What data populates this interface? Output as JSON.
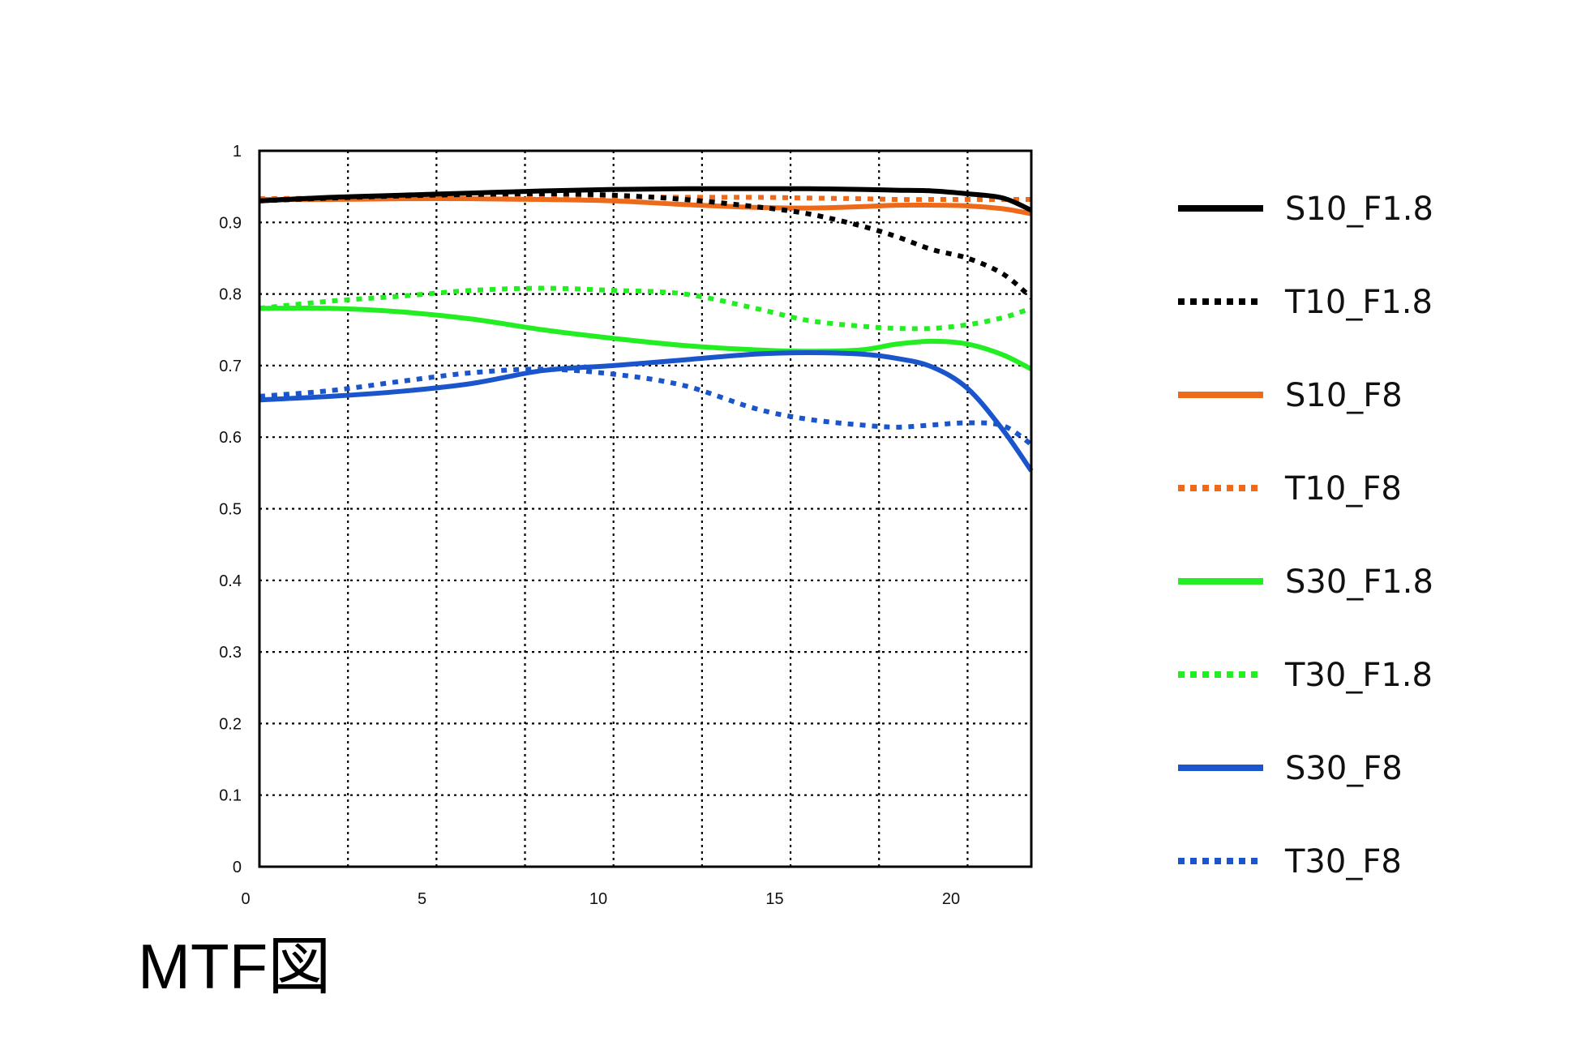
{
  "chart_data": {
    "type": "line",
    "title": "MTF図",
    "xlabel": "",
    "ylabel": "",
    "xlim": [
      0,
      21.8
    ],
    "ylim": [
      0,
      1
    ],
    "x_ticks": [
      0,
      5,
      10,
      15,
      20
    ],
    "y_ticks": [
      0,
      0.1,
      0.2,
      0.3,
      0.4,
      0.5,
      0.6,
      0.7,
      0.8,
      0.9,
      1
    ],
    "y_tick_labels": [
      "0",
      "0.1",
      "0.2",
      "0.3",
      "0.4",
      "0.5",
      "0.6",
      "0.7",
      "0.8",
      "0.9",
      "1"
    ],
    "x_tick_labels": [
      "0",
      "5",
      "10",
      "15",
      "20"
    ],
    "grid": true,
    "legend_position": "right",
    "x": [
      0,
      2,
      4,
      6,
      8,
      10,
      12,
      14,
      15.5,
      17,
      18,
      19,
      20,
      21,
      21.8
    ],
    "series": [
      {
        "name": "S10_F1.8",
        "color": "#000000",
        "style": "solid",
        "values": [
          0.93,
          0.935,
          0.938,
          0.941,
          0.944,
          0.946,
          0.947,
          0.947,
          0.947,
          0.946,
          0.945,
          0.944,
          0.94,
          0.934,
          0.917
        ]
      },
      {
        "name": "T10_F1.8",
        "color": "#000000",
        "style": "dotted",
        "values": [
          0.93,
          0.934,
          0.937,
          0.939,
          0.94,
          0.938,
          0.932,
          0.922,
          0.912,
          0.895,
          0.88,
          0.862,
          0.85,
          0.828,
          0.795
        ]
      },
      {
        "name": "S10_F8",
        "color": "#ee6a1b",
        "style": "solid",
        "values": [
          0.932,
          0.932,
          0.933,
          0.933,
          0.932,
          0.93,
          0.925,
          0.921,
          0.92,
          0.922,
          0.924,
          0.924,
          0.923,
          0.919,
          0.912
        ]
      },
      {
        "name": "T10_F8",
        "color": "#ee6a1b",
        "style": "dotted",
        "values": [
          0.933,
          0.934,
          0.935,
          0.936,
          0.936,
          0.936,
          0.935,
          0.935,
          0.934,
          0.933,
          0.932,
          0.932,
          0.932,
          0.932,
          0.932
        ]
      },
      {
        "name": "S30_F1.8",
        "color": "#22ee22",
        "style": "solid",
        "values": [
          0.78,
          0.78,
          0.775,
          0.765,
          0.75,
          0.738,
          0.728,
          0.722,
          0.72,
          0.722,
          0.73,
          0.734,
          0.73,
          0.715,
          0.695
        ]
      },
      {
        "name": "T30_F1.8",
        "color": "#22ee22",
        "style": "dotted",
        "values": [
          0.78,
          0.79,
          0.797,
          0.805,
          0.808,
          0.805,
          0.8,
          0.78,
          0.763,
          0.755,
          0.752,
          0.752,
          0.757,
          0.767,
          0.78
        ]
      },
      {
        "name": "S30_F8",
        "color": "#1a55cc",
        "style": "solid",
        "values": [
          0.652,
          0.657,
          0.664,
          0.675,
          0.693,
          0.7,
          0.708,
          0.716,
          0.718,
          0.716,
          0.71,
          0.698,
          0.668,
          0.61,
          0.553
        ]
      },
      {
        "name": "T30_F8",
        "color": "#1a55cc",
        "style": "dotted",
        "values": [
          0.657,
          0.665,
          0.678,
          0.69,
          0.695,
          0.688,
          0.672,
          0.64,
          0.625,
          0.617,
          0.614,
          0.617,
          0.62,
          0.616,
          0.59
        ]
      }
    ]
  }
}
